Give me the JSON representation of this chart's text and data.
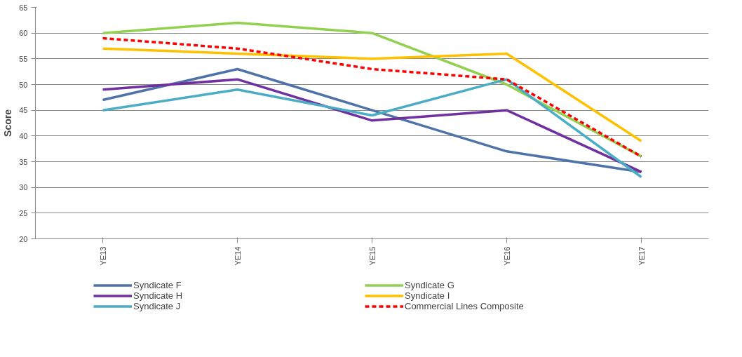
{
  "chart_data": {
    "type": "line",
    "ylabel": "Score",
    "categories": [
      "YE13",
      "YE14",
      "YE15",
      "YE16",
      "YE17"
    ],
    "series": [
      {
        "name": "Syndicate F",
        "color": "#4f73a8",
        "values": [
          47,
          53,
          45,
          37,
          33
        ]
      },
      {
        "name": "Syndicate G",
        "color": "#92d050",
        "values": [
          60,
          62,
          60,
          50,
          36
        ]
      },
      {
        "name": "Syndicate H",
        "color": "#7030a0",
        "values": [
          49,
          51,
          43,
          45,
          33
        ]
      },
      {
        "name": "Syndicate I",
        "color": "#ffc000",
        "values": [
          57,
          56,
          55,
          56,
          39
        ]
      },
      {
        "name": "Syndicate J",
        "color": "#4bacc6",
        "values": [
          45,
          49,
          44,
          51,
          32
        ]
      },
      {
        "name": "Commercial Lines Composite",
        "color": "#ff0000",
        "values": [
          59,
          57,
          53,
          51,
          36
        ],
        "line_style": "dashed"
      }
    ],
    "ylim": [
      20,
      65
    ],
    "yticks": [
      20,
      25,
      30,
      35,
      40,
      45,
      50,
      55,
      60,
      65
    ],
    "grid": "y",
    "legend": "bottom",
    "marker": "none",
    "line_style": "solid"
  }
}
